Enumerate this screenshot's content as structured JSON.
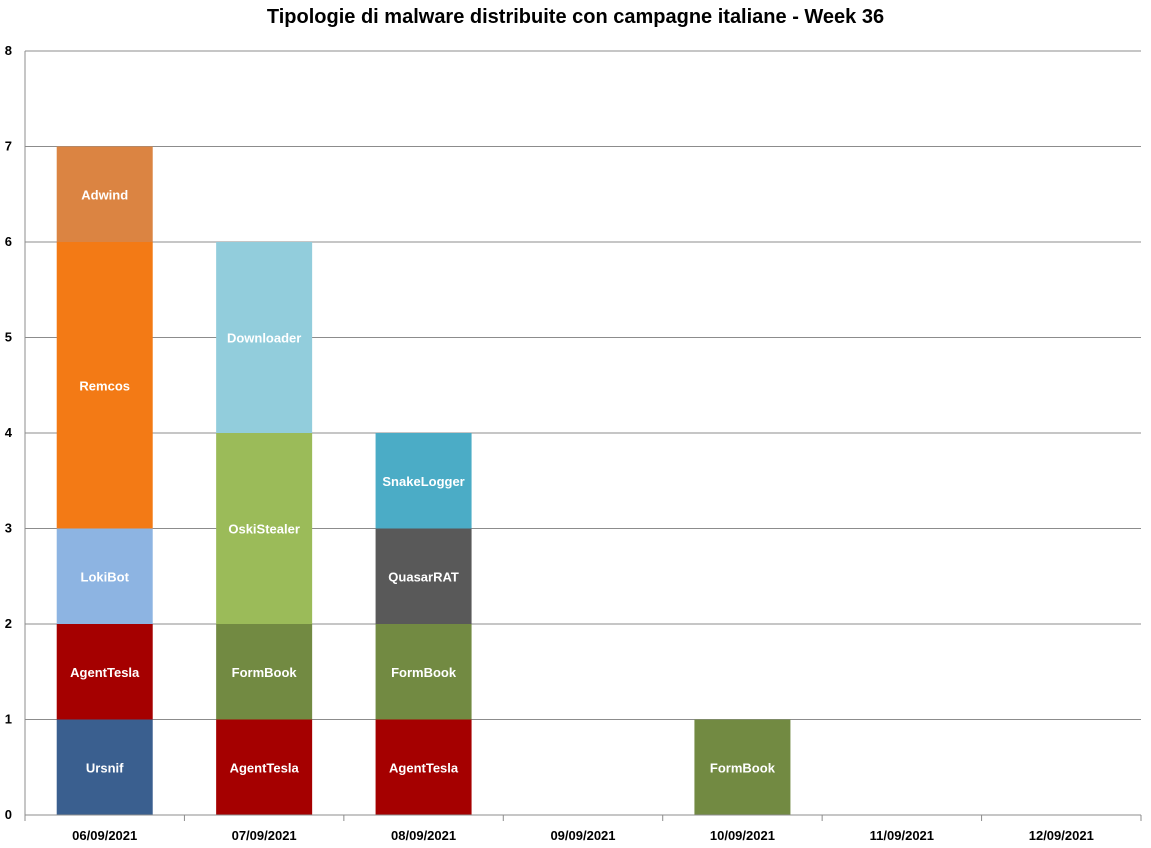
{
  "chart_data": {
    "type": "bar",
    "stacked": true,
    "title": "Tipologie di malware distribuite con campagne italiane - Week 36",
    "xlabel": "",
    "ylabel": "",
    "ylim": [
      0,
      8
    ],
    "yticks": [
      "0",
      "1",
      "2",
      "3",
      "4",
      "5",
      "6",
      "7",
      "8"
    ],
    "grid": true,
    "categories": [
      "06/09/2021",
      "07/09/2021",
      "08/09/2021",
      "09/09/2021",
      "10/09/2021",
      "11/09/2021",
      "12/09/2021"
    ],
    "stacks": [
      [
        {
          "label": "Ursnif",
          "value": 1,
          "color": "#3A5F8F"
        },
        {
          "label": "AgentTesla",
          "value": 1,
          "color": "#A50000"
        },
        {
          "label": "LokiBot",
          "value": 1,
          "color": "#8DB4E2"
        },
        {
          "label": "Remcos",
          "value": 3,
          "color": "#F37A15"
        },
        {
          "label": "Adwind",
          "value": 1,
          "color": "#DB8442"
        }
      ],
      [
        {
          "label": "AgentTesla",
          "value": 1,
          "color": "#A50000"
        },
        {
          "label": "FormBook",
          "value": 1,
          "color": "#728A42"
        },
        {
          "label": "OskiStealer",
          "value": 2,
          "color": "#9BBB59"
        },
        {
          "label": "Downloader",
          "value": 2,
          "color": "#92CDDC"
        }
      ],
      [
        {
          "label": "AgentTesla",
          "value": 1,
          "color": "#A50000"
        },
        {
          "label": "FormBook",
          "value": 1,
          "color": "#728A42"
        },
        {
          "label": "QuasarRAT",
          "value": 1,
          "color": "#595959"
        },
        {
          "label": "SnakeLogger",
          "value": 1,
          "color": "#4BACC6"
        }
      ],
      [],
      [
        {
          "label": "FormBook",
          "value": 1,
          "color": "#728A42"
        }
      ],
      [],
      []
    ]
  }
}
